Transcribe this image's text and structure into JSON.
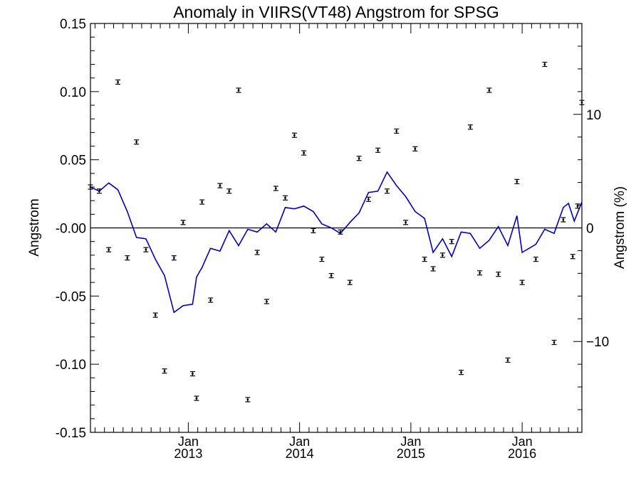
{
  "chart_data": {
    "type": "scatter",
    "title": "Anomaly in VIIRS(VT48) Angstrom for SPSG",
    "ylabel": "Angstrom",
    "ylabel_right": "Angstrom (%)",
    "ylim": [
      -0.15,
      0.15
    ],
    "y_right_lim": [
      -18,
      18
    ],
    "y_ticks": [
      0.15,
      0.1,
      0.05,
      0.0,
      -0.05,
      -0.1,
      -0.15
    ],
    "y_tick_labels": [
      "0.15",
      "0.10",
      "0.05",
      "-0.00",
      "-0.05",
      "-0.10",
      "-0.15"
    ],
    "y_right_ticks": [
      10,
      0,
      -10
    ],
    "y_right_tick_labels": [
      "10",
      "0",
      "−10"
    ],
    "x_range": [
      "2012-02-15",
      "2016-07-15"
    ],
    "x_major_ticks": [
      {
        "date": "2013-01-01",
        "month": "Jan",
        "year": "2013"
      },
      {
        "date": "2014-01-01",
        "month": "Jan",
        "year": "2014"
      },
      {
        "date": "2015-01-01",
        "month": "Jan",
        "year": "2015"
      },
      {
        "date": "2016-01-01",
        "month": "Jan",
        "year": "2016"
      }
    ],
    "zero_line": 0,
    "grid": false,
    "legend": "none",
    "colors": {
      "points": "#000000",
      "line": "#0000cc",
      "axes": "#000000"
    },
    "points": [
      {
        "x": "2012-02-15",
        "y": 0.03
      },
      {
        "x": "2012-03-15",
        "y": 0.027
      },
      {
        "x": "2012-04-15",
        "y": -0.016
      },
      {
        "x": "2012-05-15",
        "y": 0.107
      },
      {
        "x": "2012-06-15",
        "y": -0.022
      },
      {
        "x": "2012-07-15",
        "y": 0.063
      },
      {
        "x": "2012-08-15",
        "y": -0.016
      },
      {
        "x": "2012-09-15",
        "y": -0.064
      },
      {
        "x": "2012-10-15",
        "y": -0.105
      },
      {
        "x": "2012-11-15",
        "y": -0.022
      },
      {
        "x": "2012-12-15",
        "y": 0.004
      },
      {
        "x": "2013-01-15",
        "y": -0.107
      },
      {
        "x": "2013-01-28",
        "y": -0.125
      },
      {
        "x": "2013-02-15",
        "y": 0.019
      },
      {
        "x": "2013-03-15",
        "y": -0.053
      },
      {
        "x": "2013-04-15",
        "y": 0.031
      },
      {
        "x": "2013-05-15",
        "y": 0.027
      },
      {
        "x": "2013-06-15",
        "y": 0.101
      },
      {
        "x": "2013-07-15",
        "y": -0.126
      },
      {
        "x": "2013-08-15",
        "y": -0.018
      },
      {
        "x": "2013-09-15",
        "y": -0.054
      },
      {
        "x": "2013-10-15",
        "y": 0.029
      },
      {
        "x": "2013-11-15",
        "y": 0.022
      },
      {
        "x": "2013-12-15",
        "y": 0.068
      },
      {
        "x": "2014-01-15",
        "y": 0.055
      },
      {
        "x": "2014-02-15",
        "y": -0.002
      },
      {
        "x": "2014-03-15",
        "y": -0.023
      },
      {
        "x": "2014-04-15",
        "y": -0.035
      },
      {
        "x": "2014-05-15",
        "y": -0.003
      },
      {
        "x": "2014-06-15",
        "y": -0.04
      },
      {
        "x": "2014-07-15",
        "y": 0.051
      },
      {
        "x": "2014-08-15",
        "y": 0.021
      },
      {
        "x": "2014-09-15",
        "y": 0.057
      },
      {
        "x": "2014-10-15",
        "y": 0.027
      },
      {
        "x": "2014-11-15",
        "y": 0.071
      },
      {
        "x": "2014-12-15",
        "y": 0.004
      },
      {
        "x": "2015-01-15",
        "y": 0.058
      },
      {
        "x": "2015-02-15",
        "y": -0.023
      },
      {
        "x": "2015-03-15",
        "y": -0.03
      },
      {
        "x": "2015-04-15",
        "y": -0.02
      },
      {
        "x": "2015-05-15",
        "y": -0.01
      },
      {
        "x": "2015-06-15",
        "y": -0.106
      },
      {
        "x": "2015-07-15",
        "y": 0.074
      },
      {
        "x": "2015-08-15",
        "y": -0.033
      },
      {
        "x": "2015-09-15",
        "y": 0.101
      },
      {
        "x": "2015-10-15",
        "y": -0.034
      },
      {
        "x": "2015-11-15",
        "y": -0.097
      },
      {
        "x": "2015-12-15",
        "y": 0.034
      },
      {
        "x": "2016-01-01",
        "y": -0.04
      },
      {
        "x": "2016-02-15",
        "y": -0.023
      },
      {
        "x": "2016-03-15",
        "y": 0.12
      },
      {
        "x": "2016-04-15",
        "y": -0.084
      },
      {
        "x": "2016-05-15",
        "y": 0.006
      },
      {
        "x": "2016-06-15",
        "y": -0.021
      },
      {
        "x": "2016-07-01",
        "y": 0.016
      },
      {
        "x": "2016-07-15",
        "y": 0.092
      }
    ],
    "line": [
      {
        "x": "2012-02-15",
        "y": 0.03
      },
      {
        "x": "2012-03-15",
        "y": 0.027
      },
      {
        "x": "2012-04-15",
        "y": 0.033
      },
      {
        "x": "2012-05-15",
        "y": 0.028
      },
      {
        "x": "2012-06-15",
        "y": 0.012
      },
      {
        "x": "2012-07-15",
        "y": -0.007
      },
      {
        "x": "2012-08-15",
        "y": -0.008
      },
      {
        "x": "2012-09-15",
        "y": -0.023
      },
      {
        "x": "2012-10-15",
        "y": -0.035
      },
      {
        "x": "2012-11-15",
        "y": -0.062
      },
      {
        "x": "2012-12-15",
        "y": -0.057
      },
      {
        "x": "2013-01-15",
        "y": -0.056
      },
      {
        "x": "2013-01-28",
        "y": -0.036
      },
      {
        "x": "2013-02-15",
        "y": -0.029
      },
      {
        "x": "2013-03-15",
        "y": -0.015
      },
      {
        "x": "2013-04-15",
        "y": -0.017
      },
      {
        "x": "2013-05-15",
        "y": -0.002
      },
      {
        "x": "2013-06-15",
        "y": -0.013
      },
      {
        "x": "2013-07-15",
        "y": -0.001
      },
      {
        "x": "2013-08-15",
        "y": -0.003
      },
      {
        "x": "2013-09-15",
        "y": 0.003
      },
      {
        "x": "2013-10-15",
        "y": -0.003
      },
      {
        "x": "2013-11-15",
        "y": 0.015
      },
      {
        "x": "2013-12-15",
        "y": 0.014
      },
      {
        "x": "2014-01-15",
        "y": 0.016
      },
      {
        "x": "2014-02-15",
        "y": 0.012
      },
      {
        "x": "2014-03-15",
        "y": 0.003
      },
      {
        "x": "2014-04-15",
        "y": 0.0
      },
      {
        "x": "2014-05-15",
        "y": -0.004
      },
      {
        "x": "2014-06-15",
        "y": 0.004
      },
      {
        "x": "2014-07-15",
        "y": 0.011
      },
      {
        "x": "2014-08-15",
        "y": 0.026
      },
      {
        "x": "2014-09-15",
        "y": 0.027
      },
      {
        "x": "2014-10-15",
        "y": 0.041
      },
      {
        "x": "2014-11-15",
        "y": 0.031
      },
      {
        "x": "2014-12-15",
        "y": 0.023
      },
      {
        "x": "2015-01-15",
        "y": 0.012
      },
      {
        "x": "2015-02-15",
        "y": 0.007
      },
      {
        "x": "2015-03-15",
        "y": -0.018
      },
      {
        "x": "2015-04-15",
        "y": -0.008
      },
      {
        "x": "2015-05-15",
        "y": -0.021
      },
      {
        "x": "2015-06-15",
        "y": -0.003
      },
      {
        "x": "2015-07-15",
        "y": -0.004
      },
      {
        "x": "2015-08-15",
        "y": -0.015
      },
      {
        "x": "2015-09-15",
        "y": -0.009
      },
      {
        "x": "2015-10-15",
        "y": 0.001
      },
      {
        "x": "2015-11-15",
        "y": -0.013
      },
      {
        "x": "2015-12-15",
        "y": 0.009
      },
      {
        "x": "2016-01-01",
        "y": -0.018
      },
      {
        "x": "2016-02-15",
        "y": -0.012
      },
      {
        "x": "2016-03-15",
        "y": -0.001
      },
      {
        "x": "2016-04-15",
        "y": -0.004
      },
      {
        "x": "2016-05-15",
        "y": 0.015
      },
      {
        "x": "2016-06-01",
        "y": 0.018
      },
      {
        "x": "2016-06-20",
        "y": 0.005
      },
      {
        "x": "2016-07-15",
        "y": 0.019
      }
    ]
  }
}
